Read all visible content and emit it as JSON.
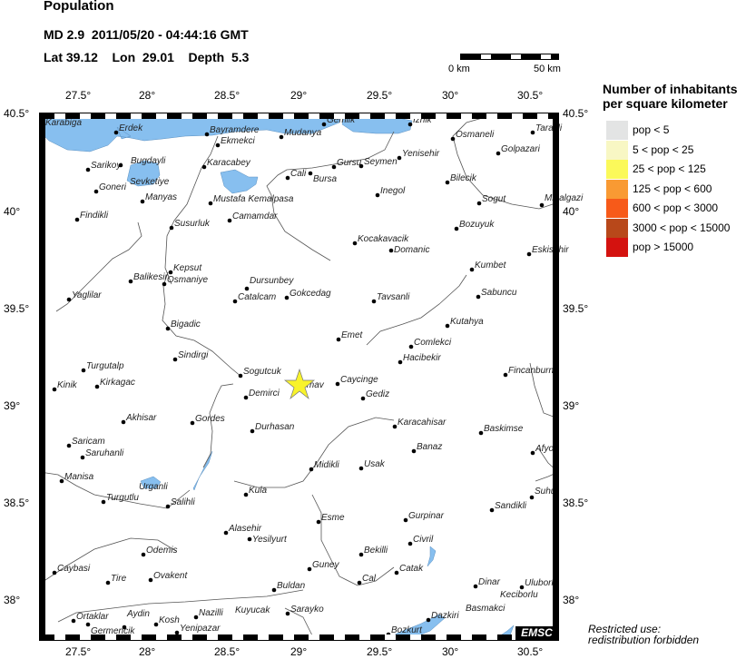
{
  "header": {
    "title": "Population",
    "event": "MD 2.9  2011/05/20 - 04:44:16 GMT",
    "location": "Lat 39.12    Lon  29.01    Depth  5.3"
  },
  "scale_bar": {
    "start_label": "0 km",
    "end_label": "50 km"
  },
  "axes": {
    "lon_ticks": [
      "27.5°",
      "28°",
      "28.5°",
      "29°",
      "29.5°",
      "30°",
      "30.5°"
    ],
    "lat_ticks": [
      "40.5°",
      "40°",
      "39.5°",
      "39°",
      "38.5°",
      "38°"
    ]
  },
  "legend": {
    "title_line1": "Number of inhabitants",
    "title_line2": "per square kilometer",
    "items": [
      {
        "label": "pop < 5",
        "color": "#e3e4e4"
      },
      {
        "label": "5 < pop < 25",
        "color": "#f8f7c4"
      },
      {
        "label": "25 < pop < 125",
        "color": "#fbf95a"
      },
      {
        "label": "125 < pop < 600",
        "color": "#f99a33"
      },
      {
        "label": "600 < pop < 3000",
        "color": "#f75a19"
      },
      {
        "label": "3000 < pop < 15000",
        "color": "#b8481a"
      },
      {
        "label": "pop > 15000",
        "color": "#d4120f"
      }
    ]
  },
  "epicenter": {
    "name": "Simav",
    "marker": "star-icon",
    "color": "#f8f32b"
  },
  "colors": {
    "water": "#87bfef",
    "river": "#555555"
  },
  "cities": [
    "Karabiga",
    "Erdek",
    "Bayramdere",
    "Ekmekci",
    "Mudanya",
    "Gemlik",
    "Iznik",
    "Osmaneli",
    "Tarakli",
    "Golpazari",
    "Sarikoy",
    "Bugdayli",
    "Sevketiye",
    "Karacabey",
    "Cali",
    "Bursa",
    "Gursu",
    "Seymen",
    "Yenisehir",
    "Goneri",
    "Manyas",
    "Mustafa Kemalpasa",
    "Bilecik",
    "Inegol",
    "Sogut",
    "Mihalgazi",
    "Findikli",
    "Camamdar",
    "Susurluk",
    "Bozuyuk",
    "Kocakavacik",
    "Domanic",
    "Eskisehir",
    "Kumbet",
    "Kepsut",
    "Balikesir",
    "Osmaniye",
    "Dursunbey",
    "Catalcam",
    "Gokcedag",
    "Tavsanli",
    "Sabuncu",
    "Yaglilar",
    "Kutahya",
    "Bigadic",
    "Emet",
    "Comlekci",
    "Hacibekir",
    "Sindirgi",
    "Turgutalp",
    "Sogutcuk",
    "Fincanburn",
    "Kinik",
    "Kirkagac",
    "Simav",
    "Caycinge",
    "Demirci",
    "Gediz",
    "Akhisar",
    "Gordes",
    "Karacahisar",
    "Baskimse",
    "Durhasan",
    "Saricam",
    "Saruhanli",
    "Banaz",
    "Afyon",
    "Midikli",
    "Usak",
    "Manisa",
    "Turgutlu",
    "Urganli",
    "Salihli",
    "Kula",
    "Suhut",
    "Sandikli",
    "Esme",
    "Gurpinar",
    "Alasehir",
    "Yesilyurt",
    "Civril",
    "Odemis",
    "Bekilli",
    "Caybasi",
    "Tire",
    "Ovakent",
    "Guney",
    "Catak",
    "Cal",
    "Dinar",
    "Uluborlu",
    "Buldan",
    "Nazilli",
    "Kuyucak",
    "Sarayko",
    "Basmakci",
    "Keciborlu",
    "Dazkiri",
    "Ortaklar",
    "Germencik",
    "Aydin",
    "Kosh",
    "Yenipazar",
    "Bozkurt"
  ],
  "logo": "EMSC",
  "notice": {
    "line1": "Restricted use:",
    "line2": "redistribution forbidden"
  }
}
